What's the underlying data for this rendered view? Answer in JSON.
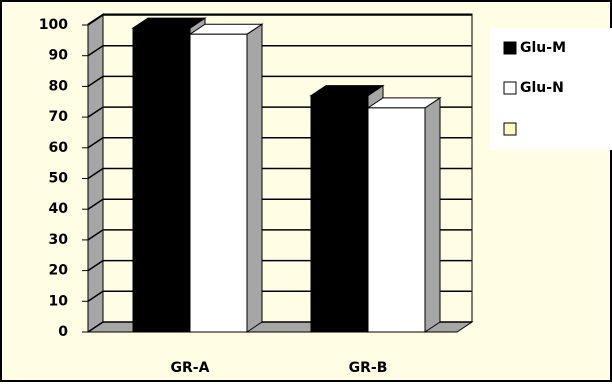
{
  "chart_data": {
    "type": "bar3d",
    "categories": [
      "GR-A",
      "GR-B"
    ],
    "series": [
      {
        "name": "Glu-M",
        "color": "#000000",
        "values": [
          99,
          77
        ]
      },
      {
        "name": "Glu-N",
        "color": "#ffffff",
        "values": [
          97,
          73
        ]
      }
    ],
    "ylim": [
      0,
      100
    ],
    "yticks": [
      0,
      10,
      20,
      30,
      40,
      50,
      60,
      70,
      80,
      90,
      100
    ],
    "grid": true,
    "legend": "right"
  }
}
